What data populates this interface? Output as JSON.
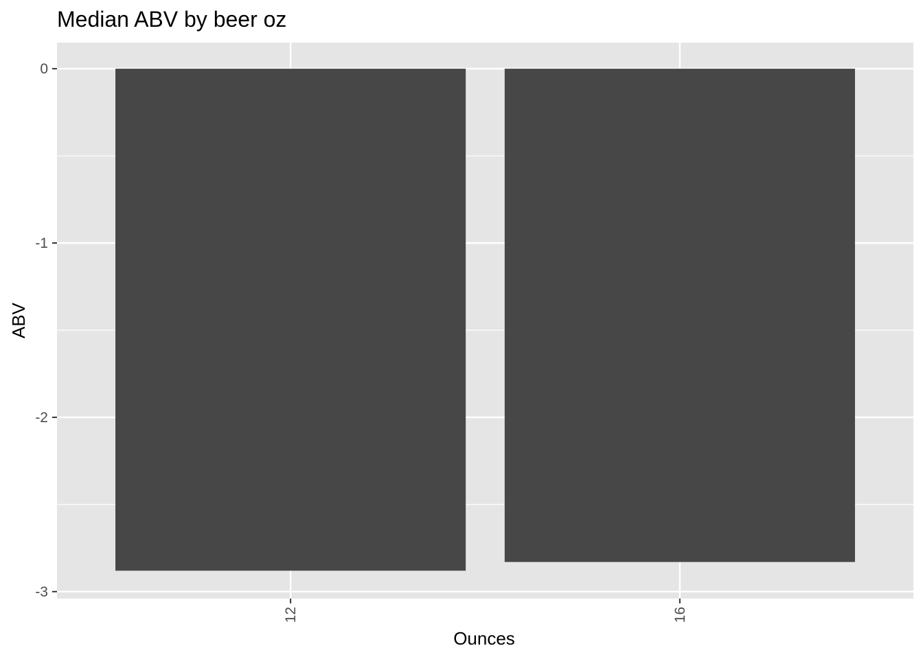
{
  "chart_data": {
    "type": "bar",
    "title": "Median ABV by beer oz",
    "xlabel": "Ounces",
    "ylabel": "ABV",
    "categories": [
      "12",
      "16"
    ],
    "values": [
      -2.88,
      -2.83
    ],
    "ylim": [
      -3.04,
      0.15
    ],
    "yticks": [
      0,
      -1,
      -2,
      -3
    ],
    "ytick_labels": [
      "0",
      "-1",
      "-2",
      "-3"
    ],
    "x_tick_rotation": "vertical",
    "grid": true,
    "legend": "none",
    "colors": {
      "panel_background": "#e5e5e5",
      "grid": "#ffffff",
      "bar_fill": "#474747",
      "tick_text": "#4d4d4d",
      "tick_mark": "#333333"
    }
  }
}
